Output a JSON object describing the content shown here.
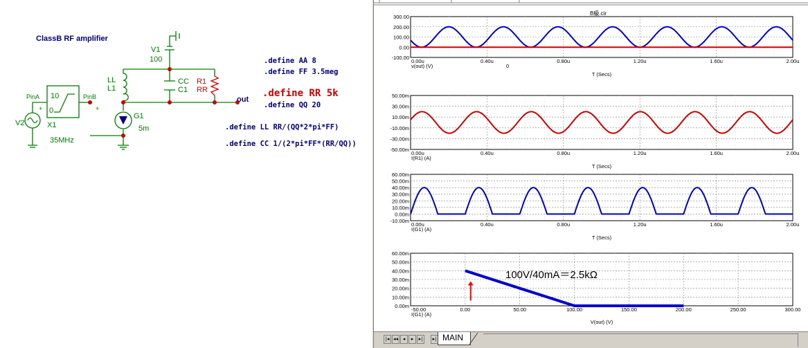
{
  "schematic": {
    "title": "ClassB  RF amplifier",
    "components": {
      "v1_name": "V1",
      "v1_value": "100",
      "ll_name": "LL",
      "l1_name": "L1",
      "cc_name": "CC",
      "c1_name": "C1",
      "r1_name": "R1",
      "rr_name": "RR",
      "g1_name": "G1",
      "g1_value": "5m",
      "v2_name": "V2",
      "x1_name": "X1",
      "x1_value": "35MHz",
      "pina": "PinA",
      "pinb": "PinB",
      "block_top": "10",
      "block_bottom": "0",
      "plus": "+",
      "out": "out"
    },
    "defines": [
      ".define AA 8",
      ".define FF 3.5meg",
      ".define RR 5k",
      ".define QQ 20",
      ".define LL  RR/(QQ*2*pi*FF)",
      ".define CC 1/(2*pi*FF*(RR/QQ))"
    ]
  },
  "plot_window": {
    "title": "B級.cir",
    "tab_label": "MAIN",
    "nav_icons": [
      "scroll-first-icon",
      "scroll-prev-page-icon",
      "scroll-prev-icon",
      "scroll-next-icon",
      "scroll-last-icon"
    ]
  },
  "colors": {
    "blue": "#0000cc",
    "red": "#cc0000",
    "dark_red": "#990000",
    "schem_green": "#008000",
    "schem_blue": "#000080"
  },
  "chart_data": [
    {
      "type": "line",
      "ylabel": "v(out) (V)",
      "xlabel": "T (Secs)",
      "marker_text": "0",
      "x_ticks": [
        "0.00u",
        "0.40u",
        "0.80u",
        "1.20u",
        "1.60u",
        "2.00u"
      ],
      "y_ticks": [
        "300.00",
        "200.00",
        "100.00",
        "0.00",
        "-100.00"
      ],
      "xlim": [
        0,
        2.0
      ],
      "ylim": [
        -100,
        300
      ],
      "grid": true,
      "series": [
        {
          "kind": "offset_sine",
          "color": "#0000cc",
          "x_start": 0,
          "x_end": 2.0,
          "offset": 100,
          "amplitude": 100,
          "period": 0.2857,
          "peak_at": 0.2
        },
        {
          "kind": "constant",
          "color": "#cc0000",
          "value": 0,
          "x_start": 0,
          "x_end": 2.0
        }
      ]
    },
    {
      "type": "line",
      "ylabel": "I(R1) (A)",
      "xlabel": "T (Secs)",
      "x_ticks": [
        "0.00u",
        "0.40u",
        "0.80u",
        "1.20u",
        "1.60u",
        "2.00u"
      ],
      "y_ticks": [
        "50.00m",
        "30.00m",
        "10.00m",
        "-10.00m",
        "-30.00m",
        "-50.00m"
      ],
      "xlim": [
        0,
        2.0
      ],
      "ylim": [
        -50,
        50
      ],
      "grid": true,
      "series": [
        {
          "kind": "sine",
          "color": "#cc0000",
          "x_start": 0,
          "x_end": 2.0,
          "offset": 0,
          "amplitude": 20,
          "period": 0.2857,
          "peak_at": 0.06
        }
      ]
    },
    {
      "type": "line",
      "ylabel": "I(G1) (A)",
      "xlabel": "T (Secs)",
      "x_ticks": [
        "0.00u",
        "0.40u",
        "0.80u",
        "1.20u",
        "1.60u",
        "2.00u"
      ],
      "y_ticks": [
        "60.00m",
        "50.00m",
        "40.00m",
        "30.00m",
        "20.00m",
        "10.00m",
        "0.00m",
        "-10.00m"
      ],
      "xlim": [
        0,
        2.0
      ],
      "ylim": [
        -10,
        60
      ],
      "grid": true,
      "series": [
        {
          "kind": "half_wave",
          "color": "#0000cc",
          "x_start": 0,
          "x_end": 2.0,
          "amplitude": 40,
          "period": 0.2857,
          "on_start": 0.0,
          "on_len": 0.1428
        }
      ]
    },
    {
      "type": "line",
      "ylabel": "I(G1) (A)",
      "xlabel": "V(out) (V)",
      "annotation": "100V/40mA＝2.5kΩ",
      "x_ticks": [
        "-50.00",
        "0.00",
        "50.00",
        "100.00",
        "150.00",
        "200.00",
        "250.00",
        "300.00"
      ],
      "y_ticks": [
        "60.00m",
        "50.00m",
        "40.00m",
        "30.00m",
        "20.00m",
        "10.00m",
        "0.00m"
      ],
      "xlim": [
        -50,
        300
      ],
      "ylim": [
        0,
        60
      ],
      "grid": true,
      "series": [
        {
          "kind": "loadline",
          "color": "#0000cc",
          "x": [
            0,
            100,
            200
          ],
          "y": [
            40,
            0,
            0
          ]
        }
      ],
      "arrow": {
        "x": 5,
        "y_from": 6,
        "y_to": 28,
        "color": "#ff0000"
      }
    }
  ]
}
